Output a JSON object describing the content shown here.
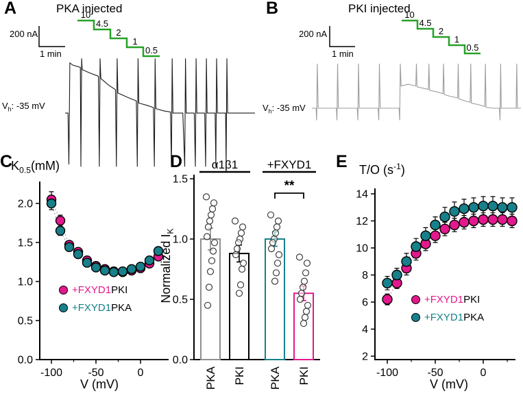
{
  "colors": {
    "magenta": "#e3188d",
    "teal": "#17808a",
    "green": "#27a127",
    "gray": "#8f8f8f",
    "black": "#000000",
    "trace_black": "#1a1a1a",
    "trace_gray": "#9c9c9c"
  },
  "panelA": {
    "label": "A",
    "title": "PKA injected",
    "scale_current": "200 nA",
    "scale_time": "1 min",
    "vh": {
      "main": "V",
      "sub": "h",
      "rest": ": -35 mV"
    },
    "step_labels": [
      "10",
      "4.5",
      "2",
      "1",
      "0.5"
    ],
    "trace_points": [
      [
        0,
        0.51
      ],
      [
        0.015,
        0.51
      ],
      [
        0.02,
        0.97
      ],
      [
        0.025,
        0.06
      ],
      [
        0.04,
        0.08
      ],
      [
        0.08,
        0.1
      ],
      [
        0.083,
        0.99
      ],
      [
        0.087,
        0.02
      ],
      [
        0.09,
        0.12
      ],
      [
        0.13,
        0.15
      ],
      [
        0.175,
        0.18
      ],
      [
        0.18,
        0.99
      ],
      [
        0.184,
        0.02
      ],
      [
        0.188,
        0.2
      ],
      [
        0.23,
        0.26
      ],
      [
        0.265,
        0.3
      ],
      [
        0.27,
        0.99
      ],
      [
        0.274,
        0.02
      ],
      [
        0.278,
        0.33
      ],
      [
        0.33,
        0.37
      ],
      [
        0.375,
        0.4
      ],
      [
        0.38,
        0.99
      ],
      [
        0.384,
        0.02
      ],
      [
        0.388,
        0.42
      ],
      [
        0.43,
        0.44
      ],
      [
        0.465,
        0.46
      ],
      [
        0.47,
        0.99
      ],
      [
        0.474,
        0.02
      ],
      [
        0.478,
        0.47
      ],
      [
        0.52,
        0.49
      ],
      [
        0.555,
        0.5
      ],
      [
        0.56,
        0.99
      ],
      [
        0.564,
        0.02
      ],
      [
        0.568,
        0.51
      ],
      [
        0.62,
        0.51
      ],
      [
        0.63,
        0.99
      ],
      [
        0.634,
        0.02
      ],
      [
        0.638,
        0.51
      ],
      [
        0.68,
        0.51
      ],
      [
        0.686,
        0.99
      ],
      [
        0.69,
        0.02
      ],
      [
        0.694,
        0.51
      ],
      [
        0.735,
        0.51
      ],
      [
        0.74,
        0.99
      ],
      [
        0.744,
        0.02
      ],
      [
        0.748,
        0.51
      ],
      [
        0.79,
        0.51
      ],
      [
        0.794,
        0.99
      ],
      [
        0.798,
        0.02
      ],
      [
        0.802,
        0.51
      ],
      [
        0.845,
        0.51
      ],
      [
        0.848,
        0.99
      ],
      [
        0.852,
        0.02
      ],
      [
        0.856,
        0.51
      ],
      [
        0.9,
        0.51
      ],
      [
        1,
        0.51
      ]
    ]
  },
  "panelB": {
    "label": "B",
    "title": "PKI injected",
    "scale_current": "200 nA",
    "scale_time": "1 min",
    "vh": {
      "main": "V",
      "sub": "h",
      "rest": ": -35 mV"
    },
    "step_labels": [
      "10",
      "4.5",
      "2",
      "1",
      "0.5"
    ],
    "trace_points": [
      [
        0,
        0.56
      ],
      [
        0.02,
        0.56
      ],
      [
        0.023,
        0.7
      ],
      [
        0.026,
        0.04
      ],
      [
        0.03,
        0.56
      ],
      [
        0.117,
        0.56
      ],
      [
        0.12,
        0.7
      ],
      [
        0.123,
        0.04
      ],
      [
        0.127,
        0.56
      ],
      [
        0.217,
        0.56
      ],
      [
        0.22,
        0.7
      ],
      [
        0.223,
        0.04
      ],
      [
        0.227,
        0.56
      ],
      [
        0.317,
        0.56
      ],
      [
        0.32,
        0.7
      ],
      [
        0.323,
        0.04
      ],
      [
        0.327,
        0.56
      ],
      [
        0.417,
        0.56
      ],
      [
        0.42,
        0.7
      ],
      [
        0.423,
        0.04
      ],
      [
        0.427,
        0.3
      ],
      [
        0.46,
        0.28
      ],
      [
        0.497,
        0.3
      ],
      [
        0.5,
        0.04
      ],
      [
        0.503,
        0.31
      ],
      [
        0.54,
        0.33
      ],
      [
        0.557,
        0.34
      ],
      [
        0.56,
        0.04
      ],
      [
        0.563,
        0.35
      ],
      [
        0.6,
        0.37
      ],
      [
        0.627,
        0.39
      ],
      [
        0.63,
        0.04
      ],
      [
        0.633,
        0.4
      ],
      [
        0.66,
        0.42
      ],
      [
        0.697,
        0.44
      ],
      [
        0.7,
        0.04
      ],
      [
        0.703,
        0.45
      ],
      [
        0.74,
        0.48
      ],
      [
        0.757,
        0.49
      ],
      [
        0.76,
        0.04
      ],
      [
        0.763,
        0.5
      ],
      [
        0.8,
        0.52
      ],
      [
        0.827,
        0.54
      ],
      [
        0.83,
        0.04
      ],
      [
        0.833,
        0.55
      ],
      [
        0.87,
        0.56
      ],
      [
        0.897,
        0.56
      ],
      [
        0.9,
        0.7
      ],
      [
        0.903,
        0.04
      ],
      [
        0.906,
        0.56
      ],
      [
        0.95,
        0.56
      ],
      [
        0.977,
        0.56
      ],
      [
        0.98,
        0.04
      ],
      [
        0.983,
        0.56
      ],
      [
        1,
        0.56
      ]
    ]
  },
  "chart_data": [
    {
      "id": "C",
      "type": "scatter",
      "panel_label": "C",
      "ylabel": {
        "main": "K",
        "sub": "0.5",
        "rest": "(mM)"
      },
      "xlabel": "V (mV)",
      "x": [
        -100,
        -90,
        -80,
        -70,
        -60,
        -50,
        -40,
        -30,
        -20,
        -10,
        0,
        10,
        20
      ],
      "series": [
        {
          "name": "+FXYD1 PKI",
          "color": "magenta",
          "values": [
            2.05,
            1.78,
            1.47,
            1.38,
            1.27,
            1.2,
            1.16,
            1.13,
            1.12,
            1.14,
            1.17,
            1.23,
            1.32
          ],
          "errors": [
            0.1,
            0.07,
            0.05,
            0.04,
            0.04,
            0.03,
            0.03,
            0.03,
            0.03,
            0.03,
            0.03,
            0.04,
            0.05
          ]
        },
        {
          "name": "+FXYD1 PKA",
          "color": "teal",
          "values": [
            2.0,
            1.65,
            1.44,
            1.35,
            1.24,
            1.18,
            1.14,
            1.12,
            1.13,
            1.16,
            1.19,
            1.27,
            1.39
          ],
          "errors": [
            0.08,
            0.06,
            0.05,
            0.04,
            0.04,
            0.03,
            0.03,
            0.03,
            0.03,
            0.03,
            0.03,
            0.04,
            0.05
          ]
        }
      ],
      "xlim": [
        -110,
        30
      ],
      "ylim": [
        0,
        2.3
      ],
      "grid": false,
      "yticks": [
        {
          "v": 0,
          "label": "0.0"
        },
        {
          "v": 0.5,
          "label": "0.5"
        },
        {
          "v": 1,
          "label": "1.0"
        },
        {
          "v": 1.5,
          "label": "1.5"
        },
        {
          "v": 2,
          "label": "2.0"
        }
      ],
      "xticks": [
        {
          "v": -100,
          "label": "-100"
        },
        {
          "v": -50,
          "label": "-50"
        },
        {
          "v": 0,
          "label": "0"
        }
      ],
      "xminor": [
        -75,
        -25
      ],
      "legend": [
        {
          "colored": "+FXYD1",
          "rest": " PKI",
          "color": "magenta"
        },
        {
          "colored": "+FXYD1",
          "rest": " PKA",
          "color": "teal"
        }
      ]
    },
    {
      "id": "D",
      "type": "bar",
      "panel_label": "D",
      "ylabel": {
        "main": "Normalized I",
        "sub": "K"
      },
      "group_headers": [
        "α1β1",
        "+FXYD1"
      ],
      "categories": [
        "PKA",
        "PKI",
        "PKA",
        "PKI"
      ],
      "bar_colors": [
        "gray",
        "black",
        "teal",
        "magenta"
      ],
      "values": [
        1.0,
        0.88,
        1.0,
        0.55
      ],
      "errors": [
        0.09,
        0.07,
        0.06,
        0.06
      ],
      "scatter": [
        [
          1.35,
          1.3,
          1.25,
          1.2,
          1.15,
          1.1,
          1.02,
          0.97,
          0.9,
          0.82,
          0.73,
          0.6,
          0.45
        ],
        [
          1.15,
          1.1,
          1.05,
          1.0,
          0.97,
          0.92,
          0.87,
          0.8,
          0.75,
          0.62,
          0.55
        ],
        [
          1.2,
          1.15,
          1.1,
          1.05,
          1.0,
          0.97,
          0.92,
          0.87,
          0.8,
          0.72,
          0.65
        ],
        [
          0.85,
          0.8,
          0.72,
          0.65,
          0.6,
          0.55,
          0.5,
          0.45,
          0.4,
          0.35,
          0.3
        ]
      ],
      "ylim": [
        0,
        1.6
      ],
      "yticks": [
        {
          "v": 0,
          "label": "0.0"
        },
        {
          "v": 0.5,
          "label": "0.5"
        },
        {
          "v": 1,
          "label": "1.0"
        },
        {
          "v": 1.5,
          "label": "1.5"
        }
      ],
      "significance": "**"
    },
    {
      "id": "E",
      "type": "scatter",
      "panel_label": "E",
      "title": {
        "main": "T/O (s",
        "sup": "-1",
        "rest": ")"
      },
      "xlabel": "V (mV)",
      "x": [
        -100,
        -90,
        -80,
        -70,
        -60,
        -50,
        -40,
        -30,
        -20,
        -10,
        0,
        10,
        20,
        30
      ],
      "series": [
        {
          "name": "+FXYD1 PKI",
          "color": "magenta",
          "values": [
            6.2,
            7.4,
            8.5,
            9.6,
            10.3,
            10.9,
            11.4,
            11.7,
            11.9,
            12.0,
            12.1,
            12.1,
            12.1,
            12.0
          ],
          "errors": [
            0.4,
            0.4,
            0.5,
            0.5,
            0.5,
            0.5,
            0.5,
            0.5,
            0.5,
            0.5,
            0.5,
            0.5,
            0.5,
            0.5
          ]
        },
        {
          "name": "+FXYD1 PKA",
          "color": "teal",
          "values": [
            7.4,
            8.0,
            9.0,
            10.1,
            10.9,
            11.7,
            12.3,
            12.7,
            12.9,
            13.0,
            13.1,
            13.1,
            13.0,
            13.0
          ],
          "errors": [
            0.5,
            0.5,
            0.6,
            0.6,
            0.6,
            0.6,
            0.7,
            0.7,
            0.7,
            0.7,
            0.7,
            0.7,
            0.7,
            0.7
          ]
        }
      ],
      "xlim": [
        -110,
        35
      ],
      "ylim": [
        1.5,
        14.5
      ],
      "grid": false,
      "yticks": [
        {
          "v": 2,
          "label": "2"
        },
        {
          "v": 4,
          "label": "4"
        },
        {
          "v": 6,
          "label": "6"
        },
        {
          "v": 8,
          "label": "8"
        },
        {
          "v": 10,
          "label": "10"
        },
        {
          "v": 12,
          "label": "12"
        },
        {
          "v": 14,
          "label": "14"
        }
      ],
      "xticks": [
        {
          "v": -100,
          "label": "-100"
        },
        {
          "v": -50,
          "label": "-50"
        },
        {
          "v": 0,
          "label": "0"
        }
      ],
      "xminor": [
        -75,
        -25,
        25
      ],
      "legend": [
        {
          "colored": "+FXYD1",
          "rest": " PKI",
          "color": "magenta"
        },
        {
          "colored": "+FXYD1",
          "rest": " PKA",
          "color": "teal"
        }
      ]
    }
  ]
}
